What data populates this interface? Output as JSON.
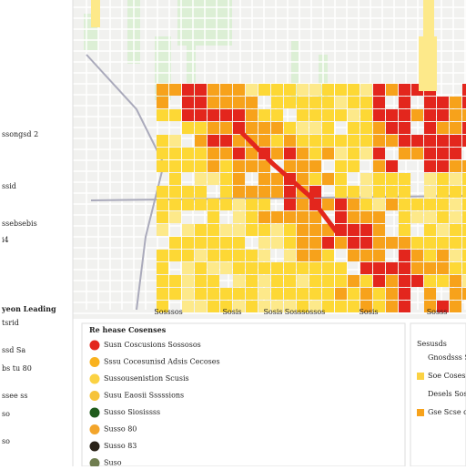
{
  "sidebar": {
    "lines": [
      "ssongsd 2",
      "ssid",
      "ssebsebis",
      "i4",
      "yeon Leading",
      "tsrid",
      "ssd Sa",
      "bs tu 80",
      "ssee ss",
      "so",
      "so"
    ]
  },
  "map": {
    "labels": [
      "Sosssos",
      "Sosis",
      "Sosis",
      "Sosssossos",
      "Sosis",
      "Sosss"
    ]
  },
  "legend": {
    "title": "Re hease Cosenses",
    "items": [
      {
        "label": "Susn Coscusions Sossosos",
        "color": "#e3261d"
      },
      {
        "label": "Sssu Cocesunisd Adsis Cecoses",
        "color": "#f9b21e"
      },
      {
        "label": "Sussousenistion Scusis",
        "color": "#fbd243"
      },
      {
        "label": "Susu Eaosii Sssssions",
        "color": "#f6c33a"
      },
      {
        "label": "Susso Siosissss",
        "color": "#1f5b1c"
      },
      {
        "label": "Susso 80",
        "color": "#f3a52b"
      },
      {
        "label": "Susso 83",
        "color": "#2a2218"
      },
      {
        "label": "Suso",
        "color": "#6f7d4f"
      }
    ]
  },
  "side_panel": {
    "title": "Sesusds",
    "items": [
      "Gnosdsss Sse",
      "Soe Cosessons",
      "Desels Sosiss",
      "Gse Scse os"
    ]
  }
}
